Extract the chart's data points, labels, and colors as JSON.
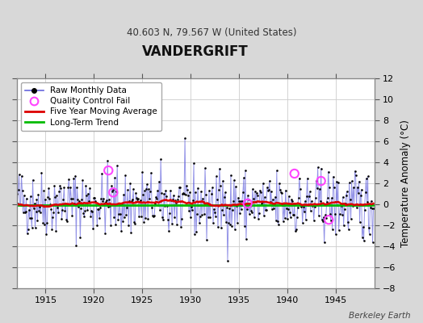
{
  "title": "VANDERGRIFT",
  "subtitle": "40.603 N, 79.567 W (United States)",
  "ylabel": "Temperature Anomaly (°C)",
  "credit": "Berkeley Earth",
  "xlim": [
    1912.0,
    1949.0
  ],
  "ylim": [
    -8,
    12
  ],
  "yticks": [
    -8,
    -6,
    -4,
    -2,
    0,
    2,
    4,
    6,
    8,
    10,
    12
  ],
  "xticks": [
    1915,
    1920,
    1925,
    1930,
    1935,
    1940,
    1945
  ],
  "background_color": "#d8d8d8",
  "plot_bg_color": "#ffffff",
  "grid_color": "#cccccc",
  "raw_line_color": "#6666dd",
  "raw_line_alpha": 0.7,
  "raw_dot_color": "#000000",
  "moving_avg_color": "#dd0000",
  "trend_color": "#00bb00",
  "qc_fail_color": "#ff44ff",
  "seed": 42,
  "start_year": 1912,
  "end_year": 1949
}
